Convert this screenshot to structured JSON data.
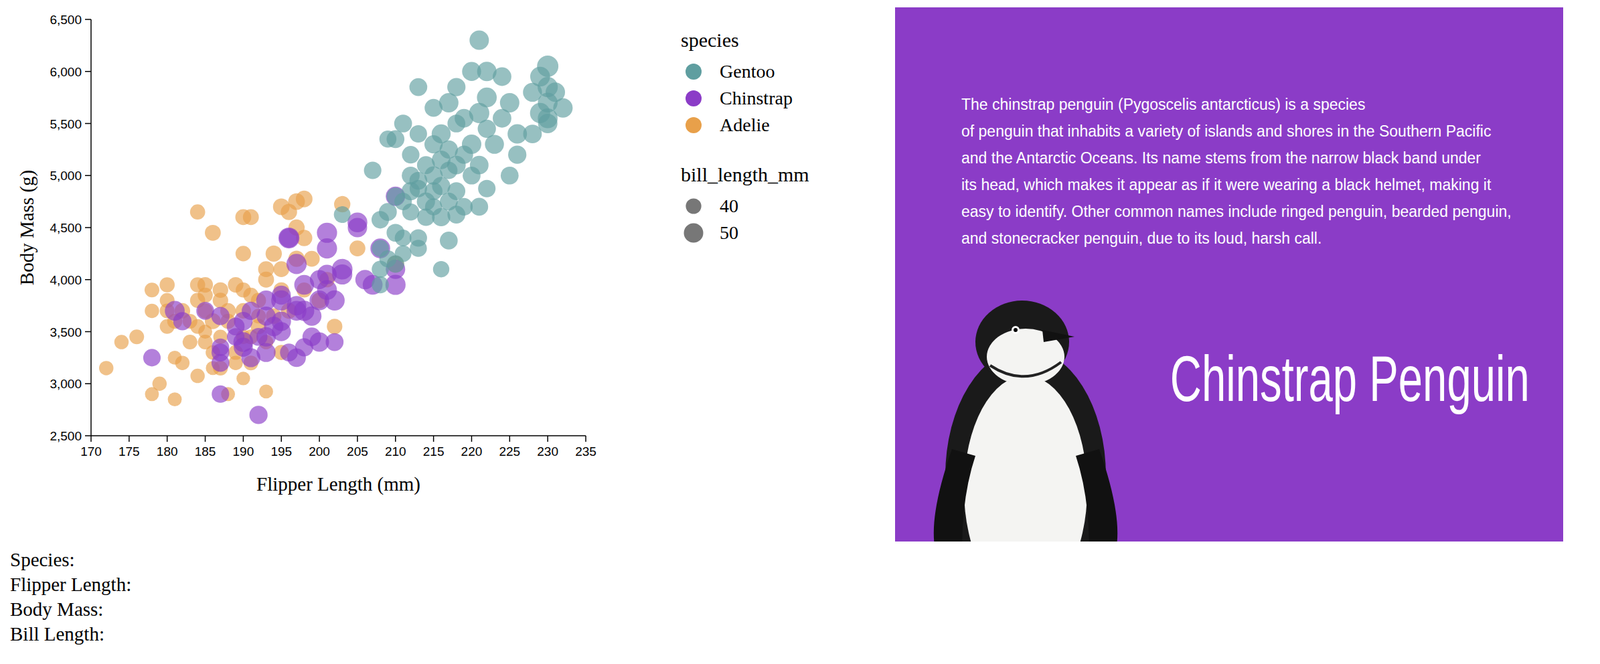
{
  "chart_data": {
    "type": "scatter",
    "x_label": "Flipper Length (mm)",
    "y_label": "Body Mass (g)",
    "xlim": [
      170,
      235
    ],
    "ylim": [
      2500,
      6500
    ],
    "xticks": [
      170,
      175,
      180,
      185,
      190,
      195,
      200,
      205,
      210,
      215,
      220,
      225,
      230,
      235
    ],
    "yticks": [
      {
        "value": 2500,
        "label": "2,500"
      },
      {
        "value": 3000,
        "label": "3,000"
      },
      {
        "value": 3500,
        "label": "3,500"
      },
      {
        "value": 4000,
        "label": "4,000"
      },
      {
        "value": 4500,
        "label": "4,500"
      },
      {
        "value": 5000,
        "label": "5,000"
      },
      {
        "value": 5500,
        "label": "5,500"
      },
      {
        "value": 6000,
        "label": "6,000"
      },
      {
        "value": 6500,
        "label": "6,500"
      }
    ],
    "legend_title": "species",
    "size_legend": {
      "title": "bill_length_mm",
      "values": [
        40,
        50
      ]
    },
    "series": [
      {
        "name": "Gentoo",
        "color": "#5f9ea0",
        "x": [
          221,
          230,
          220,
          222,
          224,
          229,
          213,
          218,
          230,
          231,
          228,
          217,
          222,
          225,
          230,
          232,
          215,
          219,
          221,
          224,
          229,
          230,
          213,
          216,
          218,
          222,
          226,
          228,
          210,
          212,
          215,
          217,
          220,
          223,
          226,
          211,
          209,
          214,
          216,
          219,
          221,
          225,
          207,
          212,
          215,
          217,
          220,
          222,
          213,
          216,
          218,
          210,
          214,
          211,
          215,
          217,
          219,
          221,
          209,
          212,
          214,
          216,
          218,
          208,
          211,
          213,
          208,
          210,
          213,
          217,
          209,
          211,
          208,
          210,
          216,
          208,
          203,
          212,
          215,
          218,
          213,
          230
        ],
        "values": [
          6300,
          6050,
          6000,
          6000,
          5950,
          5950,
          5850,
          5850,
          5850,
          5800,
          5800,
          5700,
          5750,
          5700,
          5700,
          5650,
          5650,
          5550,
          5600,
          5550,
          5600,
          5500,
          5400,
          5400,
          5500,
          5450,
          5400,
          5400,
          5350,
          5200,
          5300,
          5250,
          5300,
          5300,
          5200,
          5500,
          5350,
          5100,
          5150,
          5200,
          5100,
          5000,
          5050,
          5000,
          5000,
          5050,
          5000,
          4875,
          4875,
          4900,
          4850,
          4800,
          4750,
          4750,
          4700,
          4750,
          4700,
          4700,
          4650,
          4650,
          4600,
          4600,
          4625,
          4575,
          4400,
          4400,
          4300,
          4450,
          4300,
          4375,
          4200,
          4250,
          4100,
          4150,
          4100,
          3950,
          4625,
          4850,
          4850,
          5100,
          4950,
          5550
        ],
        "sizes": [
          50,
          55,
          49,
          50,
          48,
          51,
          46,
          47,
          52,
          50,
          49,
          50,
          51,
          50,
          51,
          50,
          46,
          48,
          52,
          48,
          52,
          50,
          45,
          49,
          46,
          47,
          50,
          48,
          46,
          45,
          47,
          47,
          50,
          49,
          47,
          46,
          44,
          46,
          48,
          47,
          48,
          46,
          45,
          46,
          47,
          45,
          46,
          45,
          45,
          47,
          46,
          46,
          47,
          45,
          44,
          46,
          45,
          46,
          46,
          44,
          45,
          47,
          46,
          45,
          43,
          45,
          44,
          46,
          44,
          46,
          44,
          43,
          44,
          45,
          42,
          44,
          43,
          47,
          46,
          48,
          46,
          51
        ]
      },
      {
        "name": "Chinstrap",
        "color": "#8b3cc7",
        "x": [
          210,
          201,
          205,
          205,
          201,
          196,
          197,
          208,
          210,
          203,
          201,
          200,
          206,
          210,
          207,
          200,
          202,
          198,
          193,
          195,
          197,
          199,
          197,
          195,
          193,
          191,
          190,
          189,
          193,
          195,
          196,
          198,
          200,
          202,
          187,
          181,
          182,
          178,
          187,
          187,
          190,
          191,
          189,
          187,
          192,
          193,
          195,
          199,
          197,
          194,
          192,
          185,
          187,
          190,
          196,
          198,
          201,
          203
        ],
        "values": [
          4800,
          4450,
          4550,
          4500,
          4300,
          4400,
          4150,
          4300,
          4100,
          4050,
          4050,
          4000,
          4000,
          3950,
          3950,
          3800,
          3800,
          3950,
          3800,
          3850,
          3750,
          3650,
          3700,
          3600,
          3650,
          3700,
          3600,
          3550,
          3450,
          3500,
          3300,
          3350,
          3400,
          3400,
          3650,
          3700,
          3600,
          3250,
          3300,
          3200,
          3400,
          3250,
          3450,
          2900,
          2700,
          3300,
          3800,
          3450,
          3250,
          3550,
          3450,
          3700,
          3350,
          3350,
          4400,
          3700,
          3900,
          4100
        ],
        "sizes": [
          50,
          52,
          51,
          50,
          52,
          50,
          52,
          51,
          50,
          52,
          50,
          49,
          50,
          52,
          51,
          51,
          52,
          51,
          51,
          49,
          50,
          50,
          51,
          50,
          49,
          47,
          48,
          46,
          50,
          49,
          46,
          47,
          50,
          46,
          47,
          51,
          47,
          45,
          46,
          46,
          51,
          49,
          45,
          45,
          47,
          49,
          52,
          48,
          48,
          50,
          46,
          46,
          45,
          49,
          54,
          52,
          51,
          53
        ]
      },
      {
        "name": "Adelie",
        "color": "#e8a04a",
        "x": [
          172,
          174,
          176,
          178,
          178,
          179,
          180,
          180,
          181,
          180,
          181,
          182,
          182,
          181,
          183,
          184,
          184,
          184,
          185,
          185,
          185,
          186,
          186,
          184,
          187,
          187,
          186,
          187,
          188,
          188,
          189,
          189,
          190,
          191,
          190,
          190,
          190,
          191,
          190,
          191,
          192,
          192,
          193,
          193,
          194,
          194,
          195,
          195,
          196,
          197,
          197,
          198,
          198,
          195,
          196,
          195,
          193,
          199,
          200,
          201,
          202,
          203,
          205,
          210,
          188,
          189,
          192,
          186,
          183,
          190,
          185,
          187,
          191,
          193,
          197,
          198,
          180,
          184,
          178,
          185
        ],
        "values": [
          3150,
          3400,
          3450,
          3900,
          2900,
          3000,
          3950,
          3550,
          3600,
          3800,
          3250,
          3200,
          3700,
          2850,
          3400,
          3075,
          3550,
          4650,
          3950,
          3850,
          3500,
          3300,
          3600,
          3800,
          3150,
          3450,
          4450,
          3800,
          3600,
          2900,
          3300,
          3950,
          4600,
          4600,
          4250,
          3900,
          3700,
          3450,
          3050,
          3200,
          3550,
          3800,
          4000,
          3400,
          3650,
          4250,
          4100,
          4700,
          4650,
          4500,
          4750,
          4775,
          4400,
          3900,
          3700,
          3300,
          2925,
          4200,
          3800,
          4000,
          3550,
          4725,
          4300,
          4150,
          3700,
          3200,
          3650,
          3150,
          3600,
          3450,
          3700,
          3900,
          3850,
          4100,
          4200,
          3900,
          3700,
          3950,
          3700,
          3400
        ],
        "sizes": [
          37,
          37,
          38,
          38,
          36,
          37,
          39,
          38,
          39,
          38,
          36,
          37,
          40,
          36,
          38,
          37,
          38,
          39,
          40,
          39,
          36,
          37,
          41,
          39,
          38,
          37,
          41,
          40,
          39,
          36,
          38,
          40,
          41,
          41,
          40,
          39,
          40,
          38,
          35,
          38,
          40,
          39,
          41,
          37,
          40,
          42,
          41,
          43,
          42,
          42,
          43,
          43,
          42,
          40,
          41,
          39,
          36,
          41,
          41,
          40,
          40,
          42,
          41,
          44,
          40,
          37,
          38,
          36,
          38,
          37,
          39,
          40,
          39,
          41,
          42,
          39,
          38,
          39,
          37,
          38
        ]
      }
    ]
  },
  "info_panel": {
    "text_lines": [
      "The chinstrap penguin (Pygoscelis antarcticus) is a species",
      "of penguin that inhabits a variety of islands and shores in the Southern Pacific",
      "and the Antarctic Oceans. Its name stems from the narrow black band under",
      "its head, which makes it appear as if it were wearing a black helmet, making it",
      "easy to identify. Other common names include ringed penguin, bearded penguin,",
      "and stonecracker penguin, due to its loud, harsh call."
    ],
    "title": "Chinstrap Penguin"
  },
  "details": [
    "Species:",
    "Flipper Length:",
    "Body Mass:",
    "Bill Length:"
  ]
}
